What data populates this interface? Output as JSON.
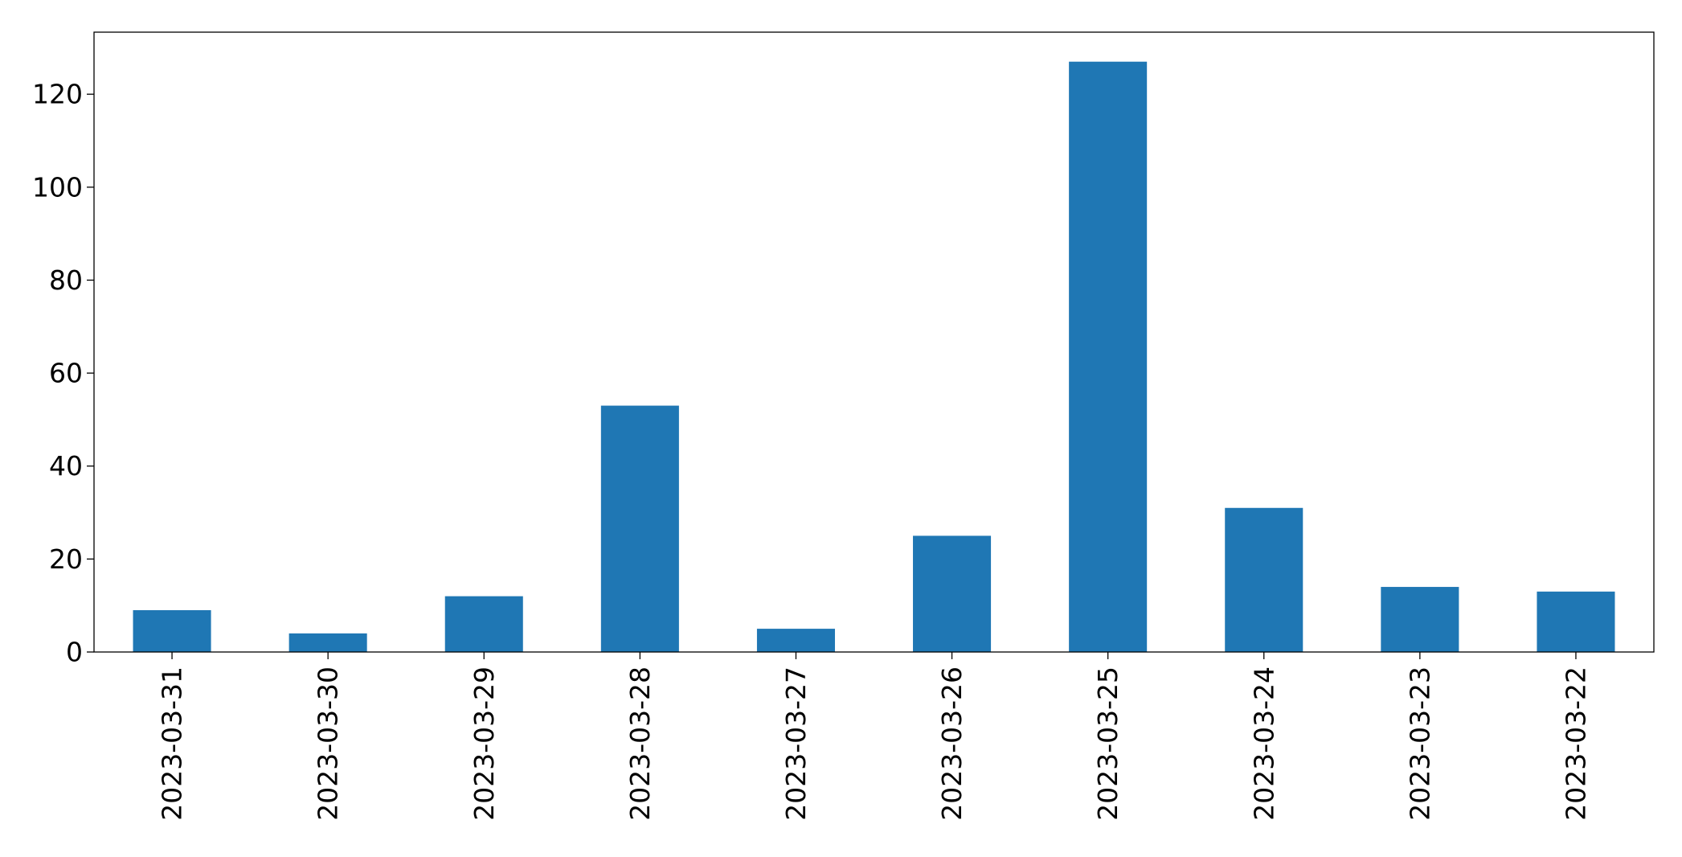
{
  "chart_data": {
    "type": "bar",
    "title": "",
    "xlabel": "",
    "ylabel": "",
    "categories": [
      "2023-03-31",
      "2023-03-30",
      "2023-03-29",
      "2023-03-28",
      "2023-03-27",
      "2023-03-26",
      "2023-03-25",
      "2023-03-24",
      "2023-03-23",
      "2023-03-22"
    ],
    "values": [
      9,
      4,
      12,
      53,
      5,
      25,
      127,
      31,
      14,
      13
    ],
    "ylim": [
      0,
      133.35
    ],
    "yticks": [
      0,
      20,
      40,
      60,
      80,
      100,
      120
    ],
    "grid": false,
    "legend": "none",
    "bar_color": "#1f77b4",
    "x_tick_rotation": "vertical"
  }
}
